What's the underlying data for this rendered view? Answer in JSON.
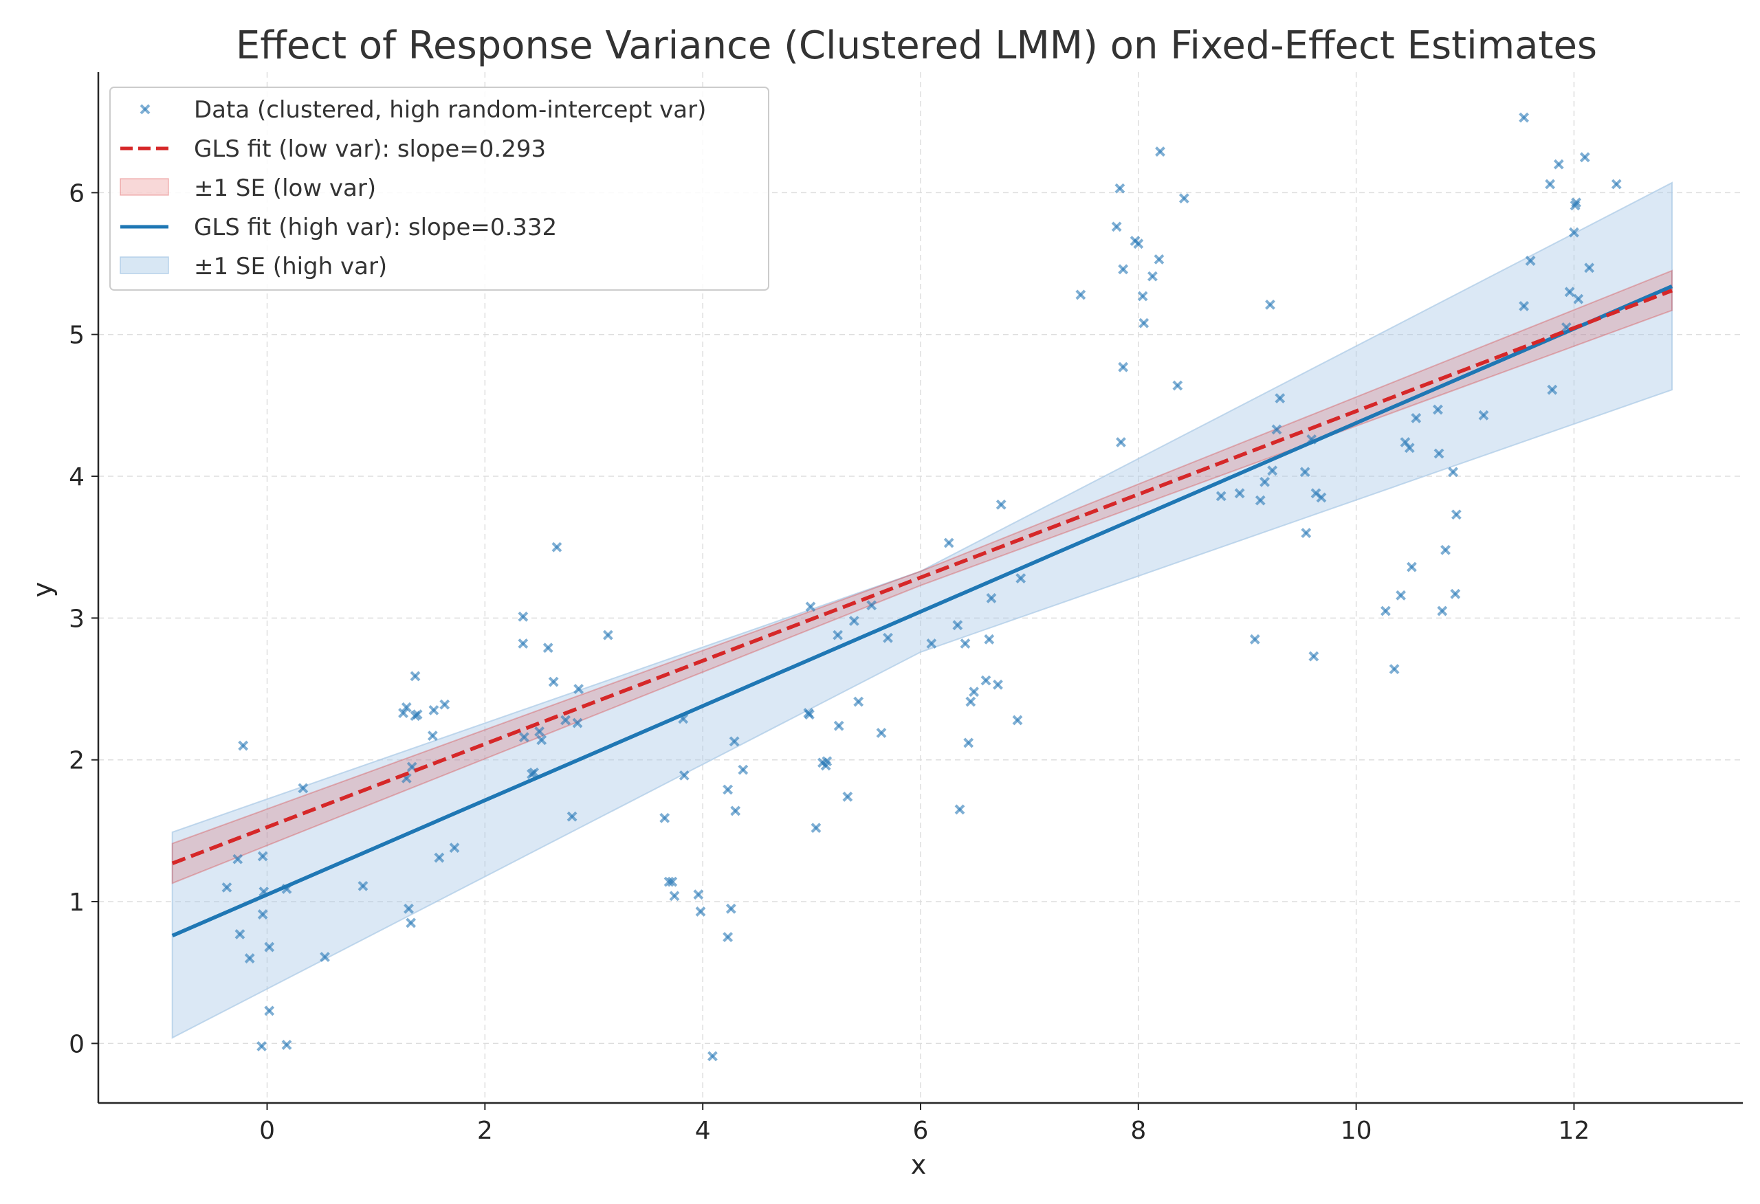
{
  "chart_data": {
    "type": "scatter",
    "title": "Effect of Response Variance (Clustered LMM) on Fixed-Effect Estimates",
    "xlabel": "x",
    "ylabel": "y",
    "xlim": [
      -1.55,
      13.55
    ],
    "ylim": [
      -0.42,
      6.85
    ],
    "x_ticks": [
      0,
      2,
      4,
      6,
      8,
      10,
      12
    ],
    "y_ticks": [
      0,
      1,
      2,
      3,
      4,
      5,
      6
    ],
    "grid": true,
    "legend_location": "upper-left",
    "colors": {
      "scatter": "#2a7ab8",
      "low_var_line": "#d62728",
      "low_var_band": "#d62728",
      "high_var_line": "#1f77b4",
      "high_var_band": "#a9c9e6",
      "axis": "#262626",
      "grid": "#dddddd",
      "title": "#333333"
    },
    "legend": [
      {
        "key": "data",
        "label": "Data (clustered, high random-intercept var)"
      },
      {
        "key": "low_fit",
        "label": "GLS fit (low var): slope=0.293"
      },
      {
        "key": "low_band",
        "label": "±1 SE (low var)"
      },
      {
        "key": "high_fit",
        "label": "GLS fit (high var): slope=0.332"
      },
      {
        "key": "high_band",
        "label": "±1 SE (high var)"
      }
    ],
    "lines": [
      {
        "name": "GLS fit (low var)",
        "x": [
          -0.87,
          12.9
        ],
        "y": [
          1.27,
          5.31
        ],
        "style": "dashed"
      },
      {
        "name": "GLS fit (high var)",
        "x": [
          -0.87,
          12.9
        ],
        "y": [
          0.76,
          5.34
        ],
        "style": "solid"
      }
    ],
    "bands": [
      {
        "name": "±1 SE (low var)",
        "x": [
          -0.87,
          6.0,
          12.9
        ],
        "upper": [
          1.41,
          3.33,
          5.45
        ],
        "lower": [
          1.13,
          3.23,
          5.17
        ]
      },
      {
        "name": "±1 SE (high var)",
        "x": [
          -0.87,
          6.0,
          12.9
        ],
        "upper": [
          1.49,
          3.33,
          6.07
        ],
        "lower": [
          0.04,
          2.76,
          4.61
        ]
      }
    ],
    "series": [
      {
        "name": "Data (clustered, high random-intercept var)",
        "points": [
          [
            -0.37,
            1.1
          ],
          [
            -0.27,
            1.3
          ],
          [
            -0.22,
            2.1
          ],
          [
            -0.25,
            0.77
          ],
          [
            -0.16,
            0.6
          ],
          [
            -0.05,
            -0.02
          ],
          [
            -0.04,
            1.32
          ],
          [
            -0.03,
            1.07
          ],
          [
            -0.04,
            0.91
          ],
          [
            0.02,
            0.68
          ],
          [
            0.02,
            0.23
          ],
          [
            0.18,
            1.09
          ],
          [
            0.18,
            -0.01
          ],
          [
            0.33,
            1.8
          ],
          [
            0.53,
            0.61
          ],
          [
            0.88,
            1.11
          ],
          [
            1.25,
            2.33
          ],
          [
            1.28,
            2.37
          ],
          [
            1.28,
            1.87
          ],
          [
            1.3,
            0.95
          ],
          [
            1.32,
            0.85
          ],
          [
            1.33,
            1.95
          ],
          [
            1.36,
            2.31
          ],
          [
            1.36,
            2.59
          ],
          [
            1.38,
            2.32
          ],
          [
            1.52,
            2.17
          ],
          [
            1.53,
            2.35
          ],
          [
            1.58,
            1.31
          ],
          [
            1.63,
            2.39
          ],
          [
            1.72,
            1.38
          ],
          [
            2.35,
            3.01
          ],
          [
            2.35,
            2.82
          ],
          [
            2.36,
            2.16
          ],
          [
            2.43,
            1.9
          ],
          [
            2.45,
            1.91
          ],
          [
            2.5,
            2.2
          ],
          [
            2.52,
            2.14
          ],
          [
            2.58,
            2.79
          ],
          [
            2.63,
            2.55
          ],
          [
            2.66,
            3.5
          ],
          [
            2.74,
            2.28
          ],
          [
            2.8,
            1.6
          ],
          [
            2.85,
            2.26
          ],
          [
            2.86,
            2.5
          ],
          [
            3.13,
            2.88
          ],
          [
            3.65,
            1.59
          ],
          [
            3.69,
            1.14
          ],
          [
            3.72,
            1.14
          ],
          [
            3.74,
            1.04
          ],
          [
            3.82,
            2.29
          ],
          [
            3.83,
            1.89
          ],
          [
            3.96,
            1.05
          ],
          [
            3.98,
            0.93
          ],
          [
            4.09,
            -0.09
          ],
          [
            4.23,
            1.79
          ],
          [
            4.23,
            0.75
          ],
          [
            4.26,
            0.95
          ],
          [
            4.29,
            2.13
          ],
          [
            4.3,
            1.64
          ],
          [
            4.37,
            1.93
          ],
          [
            4.97,
            2.33
          ],
          [
            4.98,
            2.32
          ],
          [
            4.99,
            3.08
          ],
          [
            5.04,
            1.52
          ],
          [
            5.1,
            1.98
          ],
          [
            5.13,
            1.96
          ],
          [
            5.14,
            1.99
          ],
          [
            5.24,
            2.88
          ],
          [
            5.25,
            2.24
          ],
          [
            5.33,
            1.74
          ],
          [
            5.39,
            2.98
          ],
          [
            5.43,
            2.41
          ],
          [
            5.55,
            3.09
          ],
          [
            5.64,
            2.19
          ],
          [
            5.7,
            2.86
          ],
          [
            6.1,
            2.82
          ],
          [
            6.26,
            3.53
          ],
          [
            6.34,
            2.95
          ],
          [
            6.36,
            1.65
          ],
          [
            6.41,
            2.82
          ],
          [
            6.44,
            2.12
          ],
          [
            6.46,
            2.41
          ],
          [
            6.49,
            2.48
          ],
          [
            6.6,
            2.56
          ],
          [
            6.63,
            2.85
          ],
          [
            6.65,
            3.14
          ],
          [
            6.71,
            2.53
          ],
          [
            6.74,
            3.8
          ],
          [
            6.89,
            2.28
          ],
          [
            6.92,
            3.28
          ],
          [
            7.47,
            5.28
          ],
          [
            7.8,
            5.76
          ],
          [
            7.83,
            6.03
          ],
          [
            7.84,
            4.24
          ],
          [
            7.86,
            4.77
          ],
          [
            7.86,
            5.46
          ],
          [
            7.97,
            5.66
          ],
          [
            8.0,
            5.64
          ],
          [
            8.04,
            5.27
          ],
          [
            8.05,
            5.08
          ],
          [
            8.13,
            5.41
          ],
          [
            8.19,
            5.53
          ],
          [
            8.2,
            6.29
          ],
          [
            8.36,
            4.64
          ],
          [
            8.42,
            5.96
          ],
          [
            8.76,
            3.86
          ],
          [
            8.93,
            3.88
          ],
          [
            9.07,
            2.85
          ],
          [
            9.12,
            3.83
          ],
          [
            9.16,
            3.96
          ],
          [
            9.21,
            5.21
          ],
          [
            9.23,
            4.04
          ],
          [
            9.27,
            4.33
          ],
          [
            9.3,
            4.55
          ],
          [
            9.53,
            4.03
          ],
          [
            9.54,
            3.6
          ],
          [
            9.59,
            4.26
          ],
          [
            9.61,
            2.73
          ],
          [
            9.63,
            3.88
          ],
          [
            9.68,
            3.85
          ],
          [
            10.27,
            3.05
          ],
          [
            10.35,
            2.64
          ],
          [
            10.41,
            3.16
          ],
          [
            10.45,
            4.24
          ],
          [
            10.49,
            4.2
          ],
          [
            10.51,
            3.36
          ],
          [
            10.55,
            4.41
          ],
          [
            10.75,
            4.47
          ],
          [
            10.76,
            4.16
          ],
          [
            10.79,
            3.05
          ],
          [
            10.82,
            3.48
          ],
          [
            10.89,
            4.03
          ],
          [
            10.91,
            3.17
          ],
          [
            10.92,
            3.73
          ],
          [
            11.17,
            4.43
          ],
          [
            11.54,
            6.53
          ],
          [
            11.54,
            5.2
          ],
          [
            11.6,
            5.52
          ],
          [
            11.78,
            6.06
          ],
          [
            11.8,
            4.61
          ],
          [
            11.86,
            6.2
          ],
          [
            11.93,
            5.05
          ],
          [
            11.96,
            5.3
          ],
          [
            12.0,
            5.72
          ],
          [
            12.01,
            5.91
          ],
          [
            12.02,
            5.93
          ],
          [
            12.04,
            5.25
          ],
          [
            12.1,
            6.25
          ],
          [
            12.14,
            5.47
          ],
          [
            12.39,
            6.06
          ]
        ]
      }
    ]
  }
}
